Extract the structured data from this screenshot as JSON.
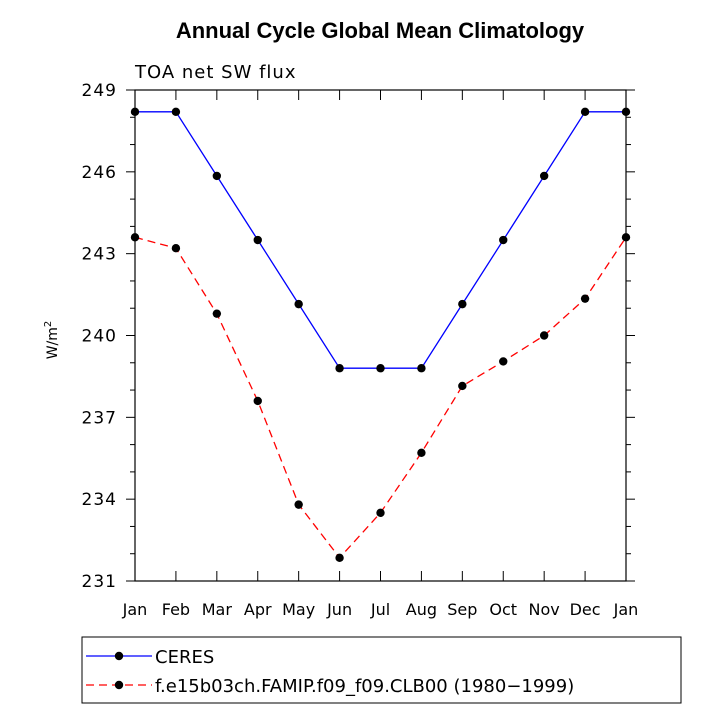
{
  "chart_data": {
    "type": "line",
    "title": "Annual Cycle Global Mean Climatology",
    "subtitle": "TOA net SW flux",
    "ylabel_base": "W/m",
    "ylabel_sup": "2",
    "xlabel": "",
    "categories": [
      "Jan",
      "Feb",
      "Mar",
      "Apr",
      "May",
      "Jun",
      "Jul",
      "Aug",
      "Sep",
      "Oct",
      "Nov",
      "Dec",
      "Jan"
    ],
    "yticks": [
      231,
      234,
      237,
      240,
      243,
      246,
      249
    ],
    "ylim": [
      231,
      249
    ],
    "series": [
      {
        "name": "CERES",
        "color": "#0000ff",
        "dash": "solid",
        "values": [
          248.2,
          248.2,
          245.85,
          243.5,
          241.15,
          238.8,
          238.8,
          238.8,
          241.15,
          243.5,
          245.85,
          248.2,
          248.2
        ]
      },
      {
        "name": "f.e15b03ch.FAMIP.f09_f09.CLB00 (1980−1999)",
        "color": "#ff0000",
        "dash": "dashed",
        "values": [
          243.6,
          243.2,
          240.8,
          237.6,
          233.8,
          231.85,
          233.5,
          235.7,
          238.15,
          239.05,
          240.0,
          241.35,
          243.6
        ]
      }
    ],
    "legend_position": "bottom"
  }
}
